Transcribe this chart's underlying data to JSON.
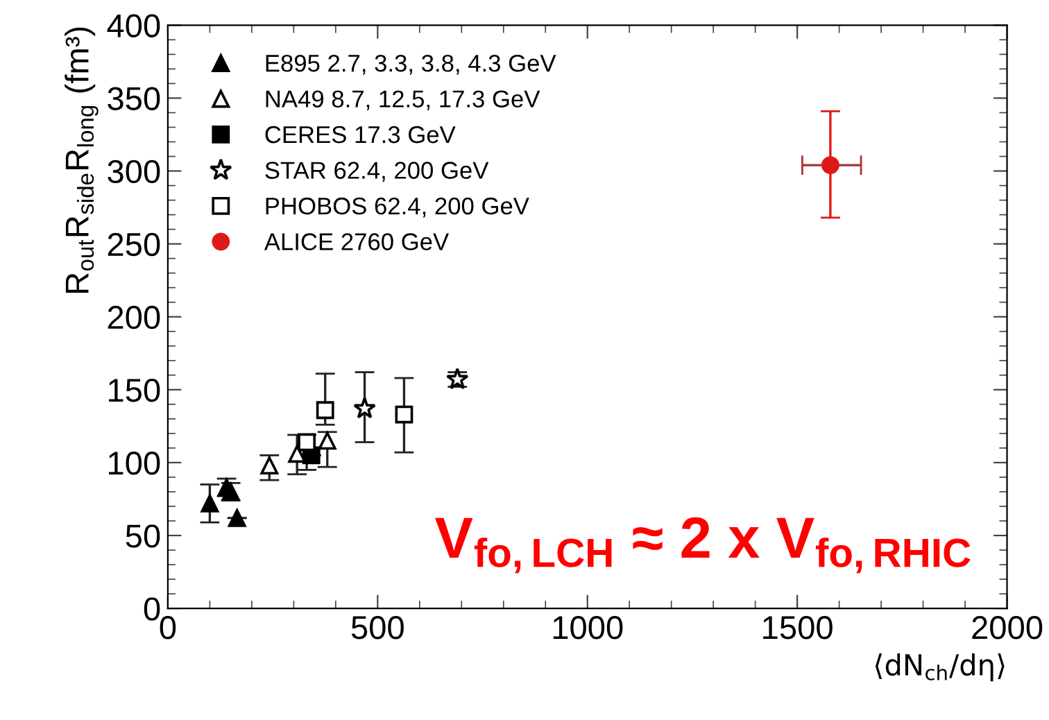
{
  "chart_data": {
    "type": "scatter",
    "xlabel": "⟨dN$_{ch}$/dη⟩",
    "ylabel": "R$_{out}$R$_{side}$R$_{long}$ (fm³)",
    "xlim": [
      0,
      2000
    ],
    "xticks": [
      0,
      500,
      1000,
      1500,
      2000
    ],
    "ylim": [
      0,
      400
    ],
    "yticks": [
      0,
      50,
      100,
      150,
      200,
      250,
      300,
      350,
      400
    ],
    "legend": "top left",
    "grid": false,
    "series": [
      {
        "name": "E895 2.7, 3.3, 3.8, 4.3 GeV",
        "color": "#000000",
        "marker": "triangle",
        "x": [
          100,
          140,
          150,
          165
        ],
        "values": [
          72,
          83,
          80,
          62
        ],
        "errors": [
          13,
          6,
          6,
          null
        ]
      },
      {
        "name": "NA49 8.7, 12.5, 17.3 GeV",
        "color": "#000000",
        "marker": "triangle",
        "x": [
          242,
          308,
          380
        ],
        "values": [
          98,
          106,
          115
        ],
        "errors": [
          [
            88,
            105
          ],
          [
            92,
            119
          ],
          [
            97,
            121
          ]
        ]
      },
      {
        "name": "CERES 17.3 GeV",
        "color": "#000000",
        "marker": "square",
        "x": [
          342
        ],
        "values": [
          105
        ],
        "errors": [
          null
        ]
      },
      {
        "name": "STAR 62.4, 200 GeV",
        "color": "#000000",
        "marker": "star",
        "x": [
          469,
          690
        ],
        "values": [
          137,
          157
        ],
        "errors": [
          [
            114,
            162
          ],
          5
        ]
      },
      {
        "name": "PHOBOS 62.4, 200 GeV",
        "color": "#000000",
        "marker": "square",
        "x": [
          331,
          375,
          563
        ],
        "values": [
          114,
          136,
          133
        ],
        "errors": [
          [
            95,
            119
          ],
          [
            126,
            161
          ],
          [
            107,
            158
          ]
        ]
      },
      {
        "name": "ALICE 2760 GeV",
        "color": "#dd1a1a",
        "marker": "circle",
        "x": [
          1579
        ],
        "values": [
          304
        ],
        "errors": [
          [
            268,
            341
          ]
        ],
        "xerrors": [
          [
            1512,
            1652
          ]
        ]
      }
    ],
    "annotations": [
      "V$_{fo,LCH}$ ≈ 2 x V$_{fo,RHIC}$"
    ]
  }
}
